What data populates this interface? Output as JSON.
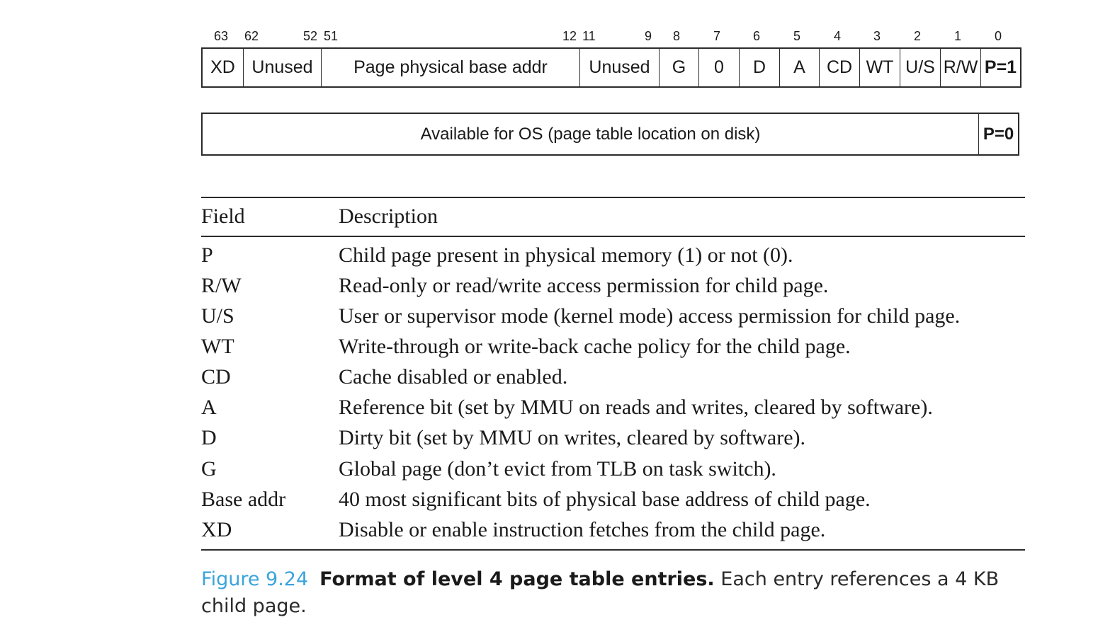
{
  "bit_positions": [
    "63",
    "62",
    "52",
    "51",
    "12",
    "11",
    "9",
    "8",
    "7",
    "6",
    "5",
    "4",
    "3",
    "2",
    "1",
    "0"
  ],
  "pte_present_fields": [
    "XD",
    "Unused",
    "Page physical base addr",
    "Unused",
    "G",
    "0",
    "D",
    "A",
    "CD",
    "WT",
    "U/S",
    "R/W",
    "P=1"
  ],
  "pte_absent": {
    "main_label": "Available for OS (page table location on disk)",
    "flag_label": "P=0"
  },
  "table": {
    "header_field": "Field",
    "header_description": "Description",
    "rows": [
      {
        "field": "P",
        "description": "Child page present in physical memory (1) or not (0)."
      },
      {
        "field": "R/W",
        "description": "Read-only or read/write access permission for child page."
      },
      {
        "field": "U/S",
        "description": "User or supervisor mode (kernel mode) access permission for child page."
      },
      {
        "field": "WT",
        "description": "Write-through or write-back cache policy for the child page."
      },
      {
        "field": "CD",
        "description": "Cache disabled or enabled."
      },
      {
        "field": "A",
        "description": "Reference bit (set by MMU on reads and writes, cleared by software)."
      },
      {
        "field": "D",
        "description": "Dirty bit (set by MMU on writes, cleared by software)."
      },
      {
        "field": "G",
        "description": "Global page (don’t evict from TLB on task switch)."
      },
      {
        "field": "Base addr",
        "description": "40 most significant bits of physical base address of child page."
      },
      {
        "field": "XD",
        "description": "Disable or enable instruction fetches from the child page."
      }
    ]
  },
  "caption": {
    "label": "Figure 9.24",
    "title": "Format of level 4 page table entries.",
    "text": "Each entry references a 4 KB child page."
  },
  "colors": {
    "caption_label": "#3aa4dc",
    "border": "#2b2b2b",
    "text": "#1a1a1a"
  }
}
